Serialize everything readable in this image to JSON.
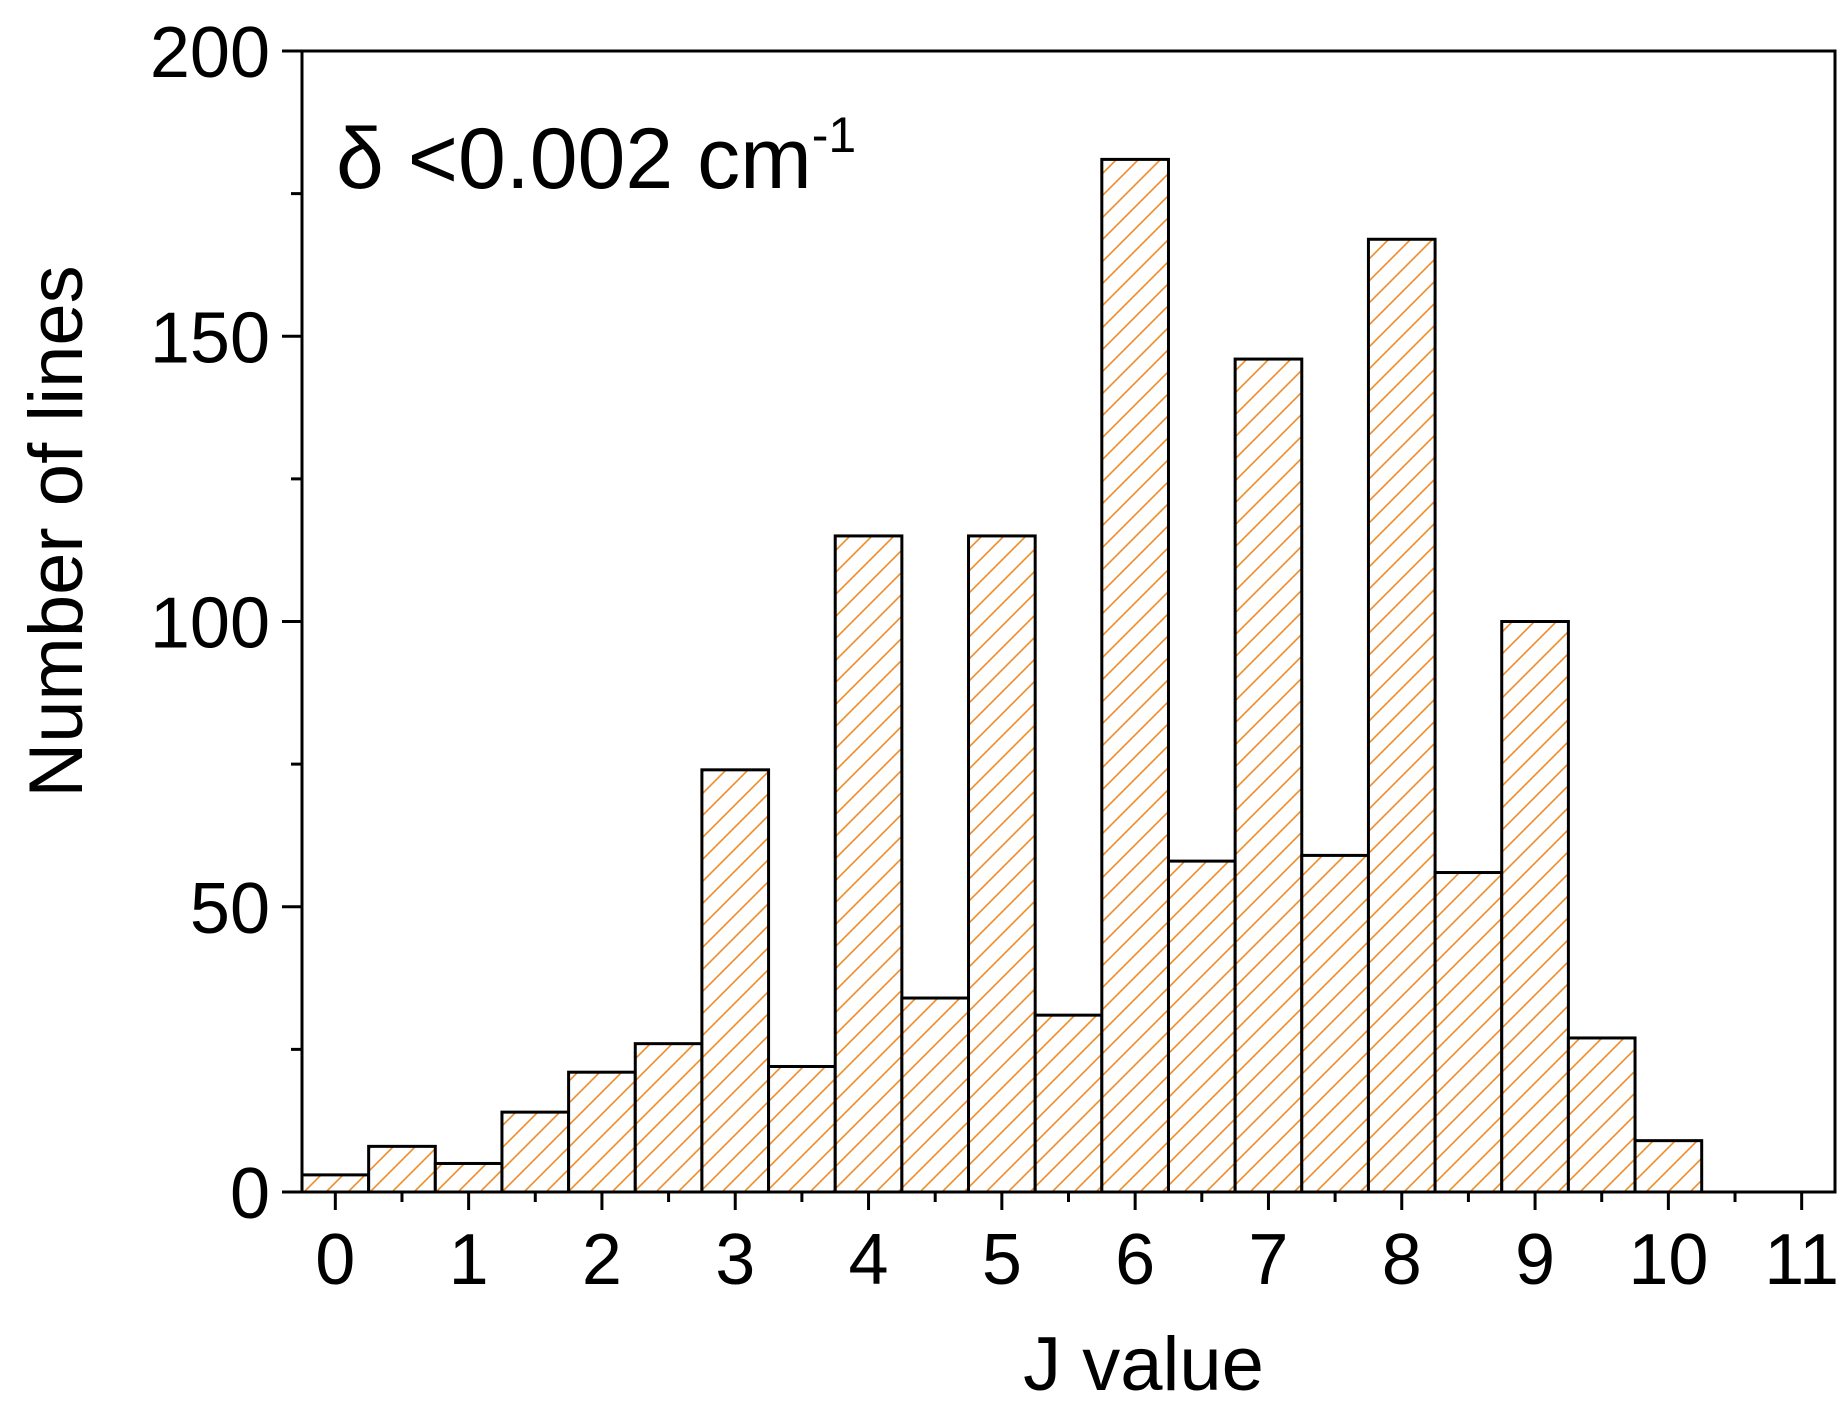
{
  "chart_data": {
    "type": "bar",
    "title": "",
    "xlabel": "J value",
    "ylabel": "Number of lines",
    "annotation": {
      "prefix": "δ <0.002 cm",
      "superscript": "-1"
    },
    "x_ticks": [
      "0",
      "1",
      "2",
      "3",
      "4",
      "5",
      "6",
      "7",
      "8",
      "9",
      "10",
      "11"
    ],
    "y_ticks": [
      "0",
      "50",
      "100",
      "150",
      "200"
    ],
    "xlim": [
      -0.25,
      11.25
    ],
    "ylim": [
      0,
      200
    ],
    "bin_width": 0.5,
    "bars": [
      {
        "x": 0.0,
        "value": 3
      },
      {
        "x": 0.5,
        "value": 8
      },
      {
        "x": 1.0,
        "value": 5
      },
      {
        "x": 1.5,
        "value": 14
      },
      {
        "x": 2.0,
        "value": 21
      },
      {
        "x": 2.5,
        "value": 26
      },
      {
        "x": 3.0,
        "value": 74
      },
      {
        "x": 3.5,
        "value": 22
      },
      {
        "x": 4.0,
        "value": 115
      },
      {
        "x": 4.5,
        "value": 34
      },
      {
        "x": 5.0,
        "value": 115
      },
      {
        "x": 5.5,
        "value": 31
      },
      {
        "x": 6.0,
        "value": 181
      },
      {
        "x": 6.5,
        "value": 58
      },
      {
        "x": 7.0,
        "value": 146
      },
      {
        "x": 7.5,
        "value": 59
      },
      {
        "x": 8.0,
        "value": 167
      },
      {
        "x": 8.5,
        "value": 56
      },
      {
        "x": 9.0,
        "value": 100
      },
      {
        "x": 9.5,
        "value": 27
      },
      {
        "x": 10.0,
        "value": 9
      }
    ],
    "colors": {
      "hatch": "#f08c28",
      "outline": "#000000"
    },
    "grid": false,
    "legend": "none"
  }
}
